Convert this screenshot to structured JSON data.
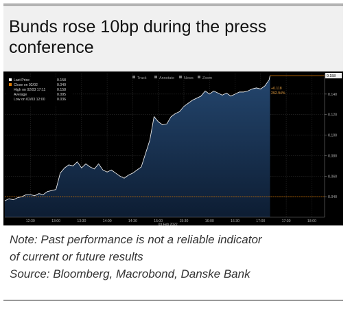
{
  "title": "Bunds rose 10bp during the press conference",
  "note": "Note: Past performance is not a reliable indicator",
  "note2": "of current or future results",
  "source": "Source: Bloomberg, Macrobond, Danske Bank",
  "toolbar": {
    "track": "Track",
    "annotate": "Annotate",
    "news": "News",
    "zoom": "Zoom"
  },
  "legend": {
    "last_price": {
      "label": "Last Price",
      "value": "0.158"
    },
    "close": {
      "label": "Close on 02/02",
      "value": "0.040"
    },
    "high": {
      "label": "High on 02/03 17:11",
      "value": "0.158"
    },
    "average": {
      "label": "Average",
      "value": "0.095"
    },
    "low": {
      "label": "Low on 02/03 12:00",
      "value": "0.036"
    }
  },
  "annotation": {
    "value": "+0.118",
    "pct": "292.94%"
  },
  "colors": {
    "background": "#000000",
    "area_top": "#24466e",
    "area_bottom": "#0d1d33",
    "line": "#e8e8e8",
    "close_line": "#e07b00",
    "last_price_tag": "#f0f0f0"
  },
  "chart_data": {
    "type": "area",
    "title": "",
    "xlabel": "03 Feb 2022",
    "ylabel": "",
    "ylim": [
      0.02,
      0.16
    ],
    "yticks": [
      0.04,
      0.06,
      0.08,
      0.1,
      0.12,
      0.14
    ],
    "ytick_labels": [
      "0.040",
      "0.060",
      "0.080",
      "0.100",
      "0.120",
      "0.140"
    ],
    "xlim": [
      "12:00",
      "18:15"
    ],
    "xticks": [
      "12:30",
      "13:00",
      "13:30",
      "14:00",
      "14:30",
      "15:00",
      "15:30",
      "16:00",
      "16:30",
      "17:00",
      "17:30",
      "18:00"
    ],
    "close_value": 0.04,
    "last_value": 0.158,
    "last_value_label": "0.158",
    "grid": true,
    "series": [
      {
        "values": [
          [
            "12:00",
            0.036
          ],
          [
            "12:05",
            0.038
          ],
          [
            "12:10",
            0.037
          ],
          [
            "12:15",
            0.039
          ],
          [
            "12:20",
            0.04
          ],
          [
            "12:25",
            0.042
          ],
          [
            "12:30",
            0.042
          ],
          [
            "12:35",
            0.041
          ],
          [
            "12:40",
            0.043
          ],
          [
            "12:45",
            0.042
          ],
          [
            "12:50",
            0.045
          ],
          [
            "12:55",
            0.046
          ],
          [
            "13:00",
            0.047
          ],
          [
            "13:05",
            0.063
          ],
          [
            "13:10",
            0.068
          ],
          [
            "13:15",
            0.071
          ],
          [
            "13:20",
            0.07
          ],
          [
            "13:25",
            0.074
          ],
          [
            "13:30",
            0.068
          ],
          [
            "13:35",
            0.072
          ],
          [
            "13:40",
            0.069
          ],
          [
            "13:45",
            0.067
          ],
          [
            "13:50",
            0.072
          ],
          [
            "13:55",
            0.066
          ],
          [
            "14:00",
            0.064
          ],
          [
            "14:05",
            0.066
          ],
          [
            "14:10",
            0.063
          ],
          [
            "14:15",
            0.06
          ],
          [
            "14:20",
            0.058
          ],
          [
            "14:25",
            0.061
          ],
          [
            "14:30",
            0.063
          ],
          [
            "14:35",
            0.066
          ],
          [
            "14:40",
            0.069
          ],
          [
            "14:45",
            0.082
          ],
          [
            "14:50",
            0.095
          ],
          [
            "14:55",
            0.118
          ],
          [
            "15:00",
            0.113
          ],
          [
            "15:05",
            0.11
          ],
          [
            "15:10",
            0.111
          ],
          [
            "15:15",
            0.118
          ],
          [
            "15:20",
            0.121
          ],
          [
            "15:25",
            0.123
          ],
          [
            "15:30",
            0.128
          ],
          [
            "15:35",
            0.131
          ],
          [
            "15:40",
            0.134
          ],
          [
            "15:45",
            0.136
          ],
          [
            "15:50",
            0.138
          ],
          [
            "15:55",
            0.143
          ],
          [
            "16:00",
            0.14
          ],
          [
            "16:05",
            0.143
          ],
          [
            "16:10",
            0.141
          ],
          [
            "16:15",
            0.139
          ],
          [
            "16:20",
            0.141
          ],
          [
            "16:25",
            0.138
          ],
          [
            "16:30",
            0.14
          ],
          [
            "16:35",
            0.142
          ],
          [
            "16:40",
            0.142
          ],
          [
            "16:45",
            0.143
          ],
          [
            "16:50",
            0.145
          ],
          [
            "16:55",
            0.146
          ],
          [
            "17:00",
            0.145
          ],
          [
            "17:05",
            0.148
          ],
          [
            "17:10",
            0.154
          ],
          [
            "17:11",
            0.158
          ]
        ]
      }
    ]
  }
}
